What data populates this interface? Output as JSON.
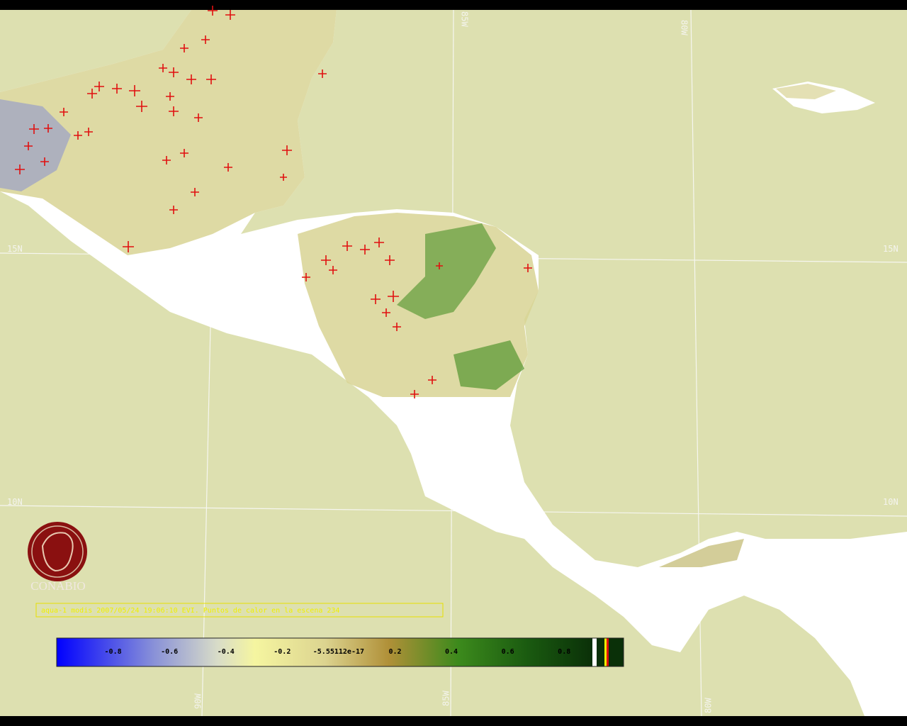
{
  "logo": {
    "label": "CONABIO"
  },
  "caption": "aqua-1 modis 2007/05/24 19:06:10 EVI. Puntos de calor en la escena 234",
  "graticule": {
    "top": [
      "85W",
      "80W"
    ],
    "bottom": [
      "90W",
      "85W",
      "80W"
    ],
    "left": [
      "15N",
      "10N"
    ],
    "right": [
      "15N",
      "10N"
    ]
  },
  "colorbar": {
    "range": [
      -1,
      0.9
    ],
    "ticks": [
      -0.8,
      -0.6,
      -0.4,
      -0.2,
      -5.55112e-17,
      0.2,
      0.4,
      0.6,
      0.8
    ]
  }
}
